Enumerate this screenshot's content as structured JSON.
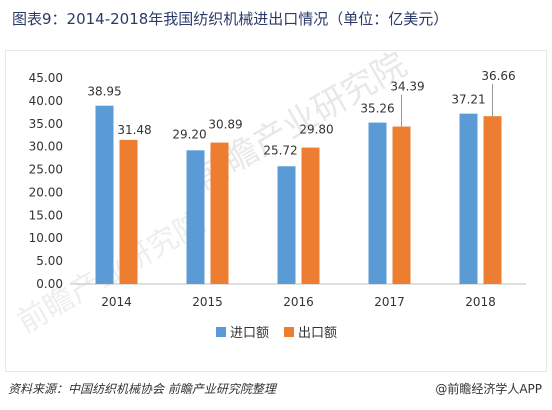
{
  "header": {
    "title": "图表9：2014-2018年我国纺织机械进出口情况（单位：亿美元）"
  },
  "footer": {
    "source": "资料来源：中国纺织机械协会 前瞻产业研究院整理",
    "brand": "@前瞻经济学人APP"
  },
  "watermark": {
    "text": "前瞻产业研究院"
  },
  "colors": {
    "import": "#5b9bd5",
    "export": "#ed7d31",
    "axis": "#bfbfbf",
    "text": "#333333",
    "title": "#2b3a67"
  },
  "chart_data": {
    "type": "bar",
    "title": "图表9：2014-2018年我国纺织机械进出口情况（单位：亿美元）",
    "categories": [
      "2014",
      "2015",
      "2016",
      "2017",
      "2018"
    ],
    "series": [
      {
        "name": "进口额",
        "values": [
          38.95,
          29.2,
          25.72,
          35.26,
          37.21
        ],
        "labels": [
          "38.95",
          "29.20",
          "25.72",
          "35.26",
          "37.21"
        ]
      },
      {
        "name": "出口额",
        "values": [
          31.48,
          30.89,
          29.8,
          34.39,
          36.66
        ],
        "labels": [
          "31.48",
          "30.89",
          "29.80",
          "34.39",
          "36.66"
        ]
      }
    ],
    "ylim": [
      0,
      45
    ],
    "yticks": [
      "0.00",
      "5.00",
      "10.00",
      "15.00",
      "20.00",
      "25.00",
      "30.00",
      "35.00",
      "40.00",
      "45.00"
    ],
    "grid": false,
    "legend": "bottom-center"
  }
}
